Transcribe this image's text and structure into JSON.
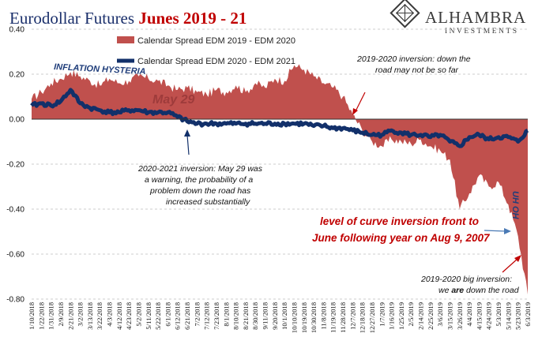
{
  "title": {
    "part1": "Eurodollar Futures ",
    "part2": "Junes 2019 - 21"
  },
  "logo": {
    "name": "ALHAMBRA",
    "sub": "INVESTMENTS"
  },
  "colors": {
    "title_blue": "#1a2f6b",
    "title_red": "#c00000",
    "area": "#c0504d",
    "line": "#12306a",
    "annotation_red": "#c00000",
    "arrow_blue": "#4a7ab5"
  },
  "chart_data": {
    "type": "area",
    "ylim": [
      -0.8,
      0.4
    ],
    "yticks": [
      "0.40",
      "0.20",
      "0.00",
      "-0.20",
      "-0.40",
      "-0.60",
      "-0.80"
    ],
    "grid": "horizontal dashed at 0.20 intervals",
    "legend_position": "top-left",
    "categories": [
      "1/10/2018",
      "1/22/2018",
      "1/31/2018",
      "2/9/2018",
      "2/21/2018",
      "3/2/2018",
      "3/13/2018",
      "3/22/2018",
      "4/3/2018",
      "4/12/2018",
      "4/23/2018",
      "5/2/2018",
      "5/11/2018",
      "5/22/2018",
      "6/1/2018",
      "6/12/2018",
      "6/21/2018",
      "7/2/2018",
      "7/12/2018",
      "7/23/2018",
      "8/1/2018",
      "8/10/2018",
      "8/21/2018",
      "8/30/2018",
      "9/11/2018",
      "9/20/2018",
      "10/1/2018",
      "10/10/2018",
      "10/19/2018",
      "10/30/2018",
      "11/8/2018",
      "11/19/2018",
      "11/28/2018",
      "12/7/2018",
      "12/18/2018",
      "12/27/2018",
      "1/7/2019",
      "1/16/2019",
      "1/25/2019",
      "2/5/2019",
      "2/14/2019",
      "2/25/2019",
      "3/6/2019",
      "3/15/2019",
      "3/26/2019",
      "4/4/2019",
      "4/15/2019",
      "4/24/2019",
      "5/3/2019",
      "5/14/2019",
      "5/23/2019",
      "6/3/2019"
    ],
    "series": [
      {
        "name": "Calendar Spread EDM 2019 - EDM 2020",
        "style": "area",
        "values": [
          0.09,
          0.12,
          0.16,
          0.18,
          0.21,
          0.19,
          0.17,
          0.15,
          0.18,
          0.16,
          0.17,
          0.19,
          0.18,
          0.17,
          0.15,
          0.13,
          0.14,
          0.12,
          0.11,
          0.13,
          0.12,
          0.15,
          0.12,
          0.16,
          0.14,
          0.18,
          0.17,
          0.24,
          0.22,
          0.19,
          0.16,
          0.14,
          0.1,
          0.02,
          -0.05,
          -0.1,
          -0.12,
          -0.09,
          -0.1,
          -0.11,
          -0.09,
          -0.12,
          -0.14,
          -0.18,
          -0.4,
          -0.33,
          -0.25,
          -0.3,
          -0.28,
          -0.38,
          -0.52,
          -0.78
        ]
      },
      {
        "name": "Calendar Spread EDM 2020 - EDM 2021",
        "style": "line",
        "values": [
          0.06,
          0.07,
          0.06,
          0.08,
          0.13,
          0.07,
          0.05,
          0.04,
          0.03,
          0.03,
          0.04,
          0.04,
          0.03,
          0.03,
          0.03,
          0.01,
          -0.01,
          -0.02,
          -0.02,
          -0.02,
          -0.02,
          -0.02,
          -0.02,
          -0.02,
          -0.02,
          -0.02,
          -0.02,
          -0.02,
          -0.02,
          -0.03,
          -0.03,
          -0.04,
          -0.04,
          -0.05,
          -0.06,
          -0.07,
          -0.07,
          -0.05,
          -0.06,
          -0.07,
          -0.07,
          -0.08,
          -0.07,
          -0.1,
          -0.12,
          -0.08,
          -0.07,
          -0.09,
          -0.08,
          -0.08,
          -0.1,
          -0.05
        ]
      }
    ],
    "annotations": {
      "inflation": "INFLATION HYSTERIA",
      "may29": "May 29",
      "top_note": [
        "2019-2020 inversion: down the",
        "road may not be so far"
      ],
      "left_note": [
        "2020-2021 inversion: May 29 was",
        "a warning, the probability of a",
        "problem down the road has",
        "increased substantially"
      ],
      "red_note": [
        "level of curve inversion front to",
        "June following year on Aug 9, 2007"
      ],
      "bottom_note_pre": "2019-2020 big inversion:",
      "bottom_note_line2_pre": "we ",
      "bottom_note_emph": "are",
      "bottom_note_line2_post": " down the road",
      "uh_oh": "UH OH"
    }
  }
}
